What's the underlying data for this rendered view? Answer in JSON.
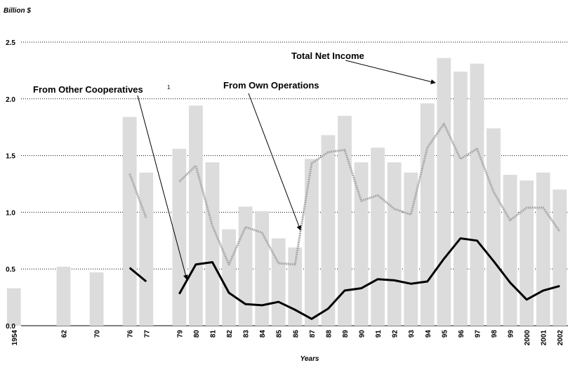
{
  "chart_data": {
    "type": "bar",
    "ylabel": "Billion $",
    "xlabel": "Years",
    "categories": [
      "1954",
      null,
      null,
      "62",
      null,
      "70",
      null,
      "76",
      "77",
      null,
      "79",
      "80",
      "81",
      "82",
      "83",
      "84",
      "85",
      "86",
      "87",
      "88",
      "89",
      "90",
      "91",
      "92",
      "93",
      "94",
      "95",
      "96",
      "97",
      "98",
      "99",
      "2000",
      "2001",
      "2002"
    ],
    "series": [
      {
        "name": "Total Net Income",
        "type": "bar",
        "color": "#dcdcdc",
        "values": [
          0.33,
          null,
          null,
          0.52,
          null,
          0.47,
          null,
          1.84,
          1.35,
          null,
          1.56,
          1.94,
          1.44,
          0.85,
          1.05,
          1.01,
          0.77,
          0.69,
          1.47,
          1.68,
          1.85,
          1.44,
          1.57,
          1.44,
          1.35,
          1.96,
          2.36,
          2.24,
          2.31,
          1.74,
          1.33,
          1.28,
          1.35,
          1.2
        ]
      },
      {
        "name": "From Own Operations",
        "type": "line",
        "color": "#a8a8a8",
        "values": [
          null,
          null,
          null,
          null,
          null,
          null,
          null,
          1.34,
          0.95,
          null,
          1.27,
          1.41,
          0.88,
          0.54,
          0.87,
          0.82,
          0.55,
          0.54,
          1.43,
          1.53,
          1.55,
          1.1,
          1.15,
          1.03,
          0.98,
          1.57,
          1.78,
          1.47,
          1.56,
          1.18,
          0.93,
          1.04,
          1.04,
          0.83
        ]
      },
      {
        "name": "From Other Cooperatives",
        "type": "line",
        "color": "#000000",
        "values": [
          null,
          null,
          null,
          null,
          null,
          null,
          null,
          0.51,
          0.39,
          null,
          0.28,
          0.54,
          0.56,
          0.29,
          0.19,
          0.18,
          0.21,
          0.14,
          0.06,
          0.15,
          0.31,
          0.33,
          0.41,
          0.4,
          0.37,
          0.39,
          0.59,
          0.77,
          0.75,
          0.57,
          0.38,
          0.23,
          0.31,
          0.35
        ]
      }
    ],
    "footnote_marker": "1",
    "ylim": [
      0,
      2.5
    ],
    "yticks": [
      {
        "value": 0,
        "label": "0.0"
      },
      0.5,
      {
        "value": 1,
        "label": "1.0"
      },
      1.5,
      {
        "value": 2,
        "label": "2.0"
      },
      2.5
    ],
    "grid": true
  }
}
